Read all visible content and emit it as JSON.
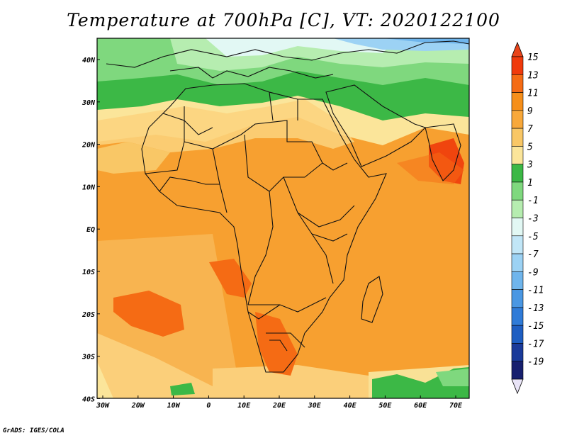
{
  "title": "Temperature at 700hPa [C], VT: 2020122100",
  "footer": "GrADS: IGES/COLA",
  "map": {
    "lon_labels": [
      "30W",
      "20W",
      "10W",
      "0",
      "10E",
      "20E",
      "30E",
      "40E",
      "50E",
      "60E",
      "70E"
    ],
    "lat_labels": [
      "40N",
      "30N",
      "20N",
      "10N",
      "EQ",
      "10S",
      "20S",
      "30S",
      "40S"
    ]
  },
  "colorbar": {
    "levels": [
      "15",
      "13",
      "11",
      "9",
      "7",
      "5",
      "3",
      "1",
      "-1",
      "-3",
      "-5",
      "-7",
      "-9",
      "-11",
      "-13",
      "-15",
      "-17",
      "-19"
    ],
    "colors": [
      "#f03a0c",
      "#f56b14",
      "#f68f1a",
      "#f8a83a",
      "#f9c766",
      "#fbe59a",
      "#3cb846",
      "#7fd87e",
      "#b6edb0",
      "#e2f8f4",
      "#c1e6f7",
      "#9cd2f4",
      "#6fb5ec",
      "#4a97e3",
      "#2f7bd8",
      "#1e5ec2",
      "#1a3a9a",
      "#171f6e"
    ],
    "top_color": "#e8441a",
    "bottom_color": "#e9e4f7"
  }
}
